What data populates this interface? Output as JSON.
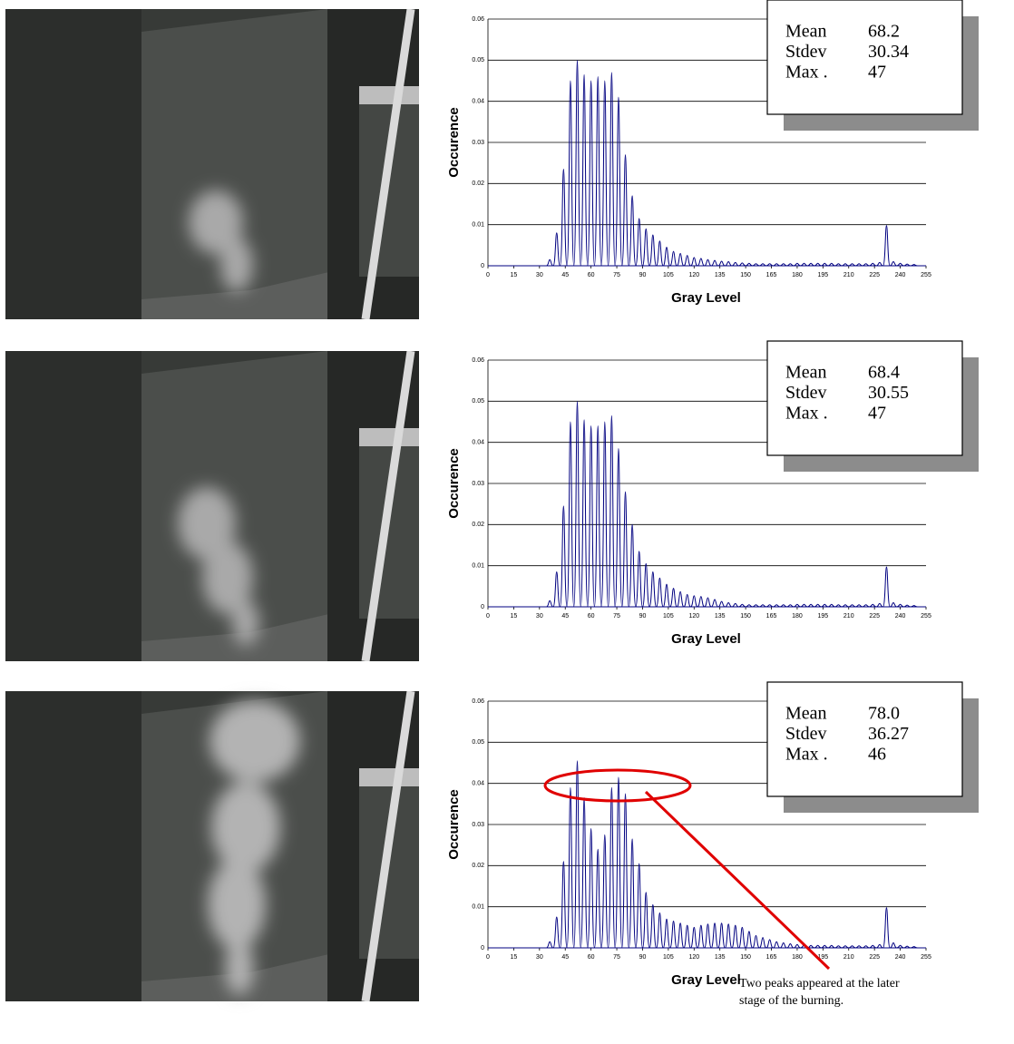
{
  "chart_data": [
    {
      "type": "spike",
      "ylabel": "Occurence",
      "xlabel": "Gray Level",
      "color": "#000080",
      "grid": true,
      "xlim": [
        0,
        255
      ],
      "ylim": [
        0,
        0.06
      ],
      "xticks": [
        0,
        15,
        30,
        45,
        60,
        75,
        90,
        105,
        120,
        135,
        150,
        165,
        180,
        195,
        210,
        225,
        240,
        255
      ],
      "yticks": [
        0,
        0.01,
        0.02,
        0.03,
        0.04,
        0.05,
        0.06
      ],
      "x": [
        36,
        40,
        44,
        48,
        52,
        56,
        60,
        64,
        68,
        72,
        76,
        80,
        84,
        88,
        92,
        96,
        100,
        104,
        108,
        112,
        116,
        120,
        124,
        128,
        132,
        136,
        140,
        144,
        148,
        152,
        156,
        160,
        164,
        168,
        172,
        176,
        180,
        184,
        188,
        192,
        196,
        200,
        204,
        208,
        212,
        216,
        220,
        224,
        228,
        232,
        236,
        240,
        244,
        248
      ],
      "values": [
        0.0015,
        0.008,
        0.0235,
        0.045,
        0.05,
        0.0465,
        0.045,
        0.046,
        0.045,
        0.047,
        0.041,
        0.027,
        0.017,
        0.0115,
        0.009,
        0.0075,
        0.006,
        0.0045,
        0.0035,
        0.003,
        0.0025,
        0.002,
        0.0018,
        0.0015,
        0.0013,
        0.0011,
        0.001,
        0.0008,
        0.0007,
        0.0006,
        0.0005,
        0.0005,
        0.0005,
        0.0005,
        0.0005,
        0.0005,
        0.0006,
        0.0006,
        0.0006,
        0.0006,
        0.0006,
        0.0006,
        0.0005,
        0.0005,
        0.0005,
        0.0005,
        0.0005,
        0.0006,
        0.0008,
        0.0098,
        0.001,
        0.0006,
        0.0004,
        0.0003
      ],
      "stats": [
        {
          "label": "Mean",
          "value": "68.2"
        },
        {
          "label": "Stdev",
          "value": "30.34"
        },
        {
          "label": "Max .",
          "value": "47"
        }
      ]
    },
    {
      "type": "spike",
      "ylabel": "Occurence",
      "xlabel": "Gray Level",
      "color": "#000080",
      "grid": true,
      "xlim": [
        0,
        255
      ],
      "ylim": [
        0,
        0.06
      ],
      "xticks": [
        0,
        15,
        30,
        45,
        60,
        75,
        90,
        105,
        120,
        135,
        150,
        165,
        180,
        195,
        210,
        225,
        240,
        255
      ],
      "yticks": [
        0,
        0.01,
        0.02,
        0.03,
        0.04,
        0.05,
        0.06
      ],
      "x": [
        36,
        40,
        44,
        48,
        52,
        56,
        60,
        64,
        68,
        72,
        76,
        80,
        84,
        88,
        92,
        96,
        100,
        104,
        108,
        112,
        116,
        120,
        124,
        128,
        132,
        136,
        140,
        144,
        148,
        152,
        156,
        160,
        164,
        168,
        172,
        176,
        180,
        184,
        188,
        192,
        196,
        200,
        204,
        208,
        212,
        216,
        220,
        224,
        228,
        232,
        236,
        240,
        244,
        248
      ],
      "values": [
        0.0015,
        0.0085,
        0.0245,
        0.045,
        0.05,
        0.0455,
        0.044,
        0.044,
        0.045,
        0.0465,
        0.0385,
        0.028,
        0.02,
        0.0135,
        0.0105,
        0.0085,
        0.007,
        0.0055,
        0.0045,
        0.0037,
        0.003,
        0.0027,
        0.0025,
        0.0022,
        0.0018,
        0.0013,
        0.001,
        0.0008,
        0.0006,
        0.0005,
        0.0005,
        0.0005,
        0.0005,
        0.0005,
        0.0005,
        0.0005,
        0.0006,
        0.0006,
        0.0006,
        0.0006,
        0.0006,
        0.0006,
        0.0005,
        0.0005,
        0.0005,
        0.0005,
        0.0005,
        0.0006,
        0.0008,
        0.0097,
        0.001,
        0.0006,
        0.0004,
        0.0003
      ],
      "stats": [
        {
          "label": "Mean",
          "value": "68.4"
        },
        {
          "label": "Stdev",
          "value": "30.55"
        },
        {
          "label": "Max .",
          "value": "47"
        }
      ]
    },
    {
      "type": "spike",
      "ylabel": "Occurence",
      "xlabel": "Gray Level",
      "color": "#000080",
      "grid": true,
      "xlim": [
        0,
        255
      ],
      "ylim": [
        0,
        0.06
      ],
      "xticks": [
        0,
        15,
        30,
        45,
        60,
        75,
        90,
        105,
        120,
        135,
        150,
        165,
        180,
        195,
        210,
        225,
        240,
        255
      ],
      "yticks": [
        0,
        0.01,
        0.02,
        0.03,
        0.04,
        0.05,
        0.06
      ],
      "x": [
        36,
        40,
        44,
        48,
        52,
        56,
        60,
        64,
        68,
        72,
        76,
        80,
        84,
        88,
        92,
        96,
        100,
        104,
        108,
        112,
        116,
        120,
        124,
        128,
        132,
        136,
        140,
        144,
        148,
        152,
        156,
        160,
        164,
        168,
        172,
        176,
        180,
        184,
        188,
        192,
        196,
        200,
        204,
        208,
        212,
        216,
        220,
        224,
        228,
        232,
        236,
        240,
        244,
        248
      ],
      "values": [
        0.0015,
        0.0075,
        0.021,
        0.039,
        0.0455,
        0.0365,
        0.029,
        0.024,
        0.0275,
        0.039,
        0.0415,
        0.0375,
        0.0265,
        0.0205,
        0.0135,
        0.0105,
        0.0085,
        0.007,
        0.0065,
        0.006,
        0.0055,
        0.005,
        0.0055,
        0.0058,
        0.006,
        0.006,
        0.0058,
        0.0055,
        0.005,
        0.004,
        0.003,
        0.0025,
        0.002,
        0.0015,
        0.0012,
        0.001,
        0.0008,
        0.0007,
        0.0006,
        0.0006,
        0.0006,
        0.0006,
        0.0005,
        0.0005,
        0.0005,
        0.0005,
        0.0005,
        0.0006,
        0.0008,
        0.0098,
        0.0012,
        0.0006,
        0.0004,
        0.0003
      ],
      "stats": [
        {
          "label": "Mean",
          "value": "78.0"
        },
        {
          "label": "Stdev",
          "value": "36.27"
        },
        {
          "label": "Max .",
          "value": "46"
        }
      ],
      "annotation": [
        "Two peaks appeared at the later",
        "stage of the burning."
      ]
    }
  ]
}
